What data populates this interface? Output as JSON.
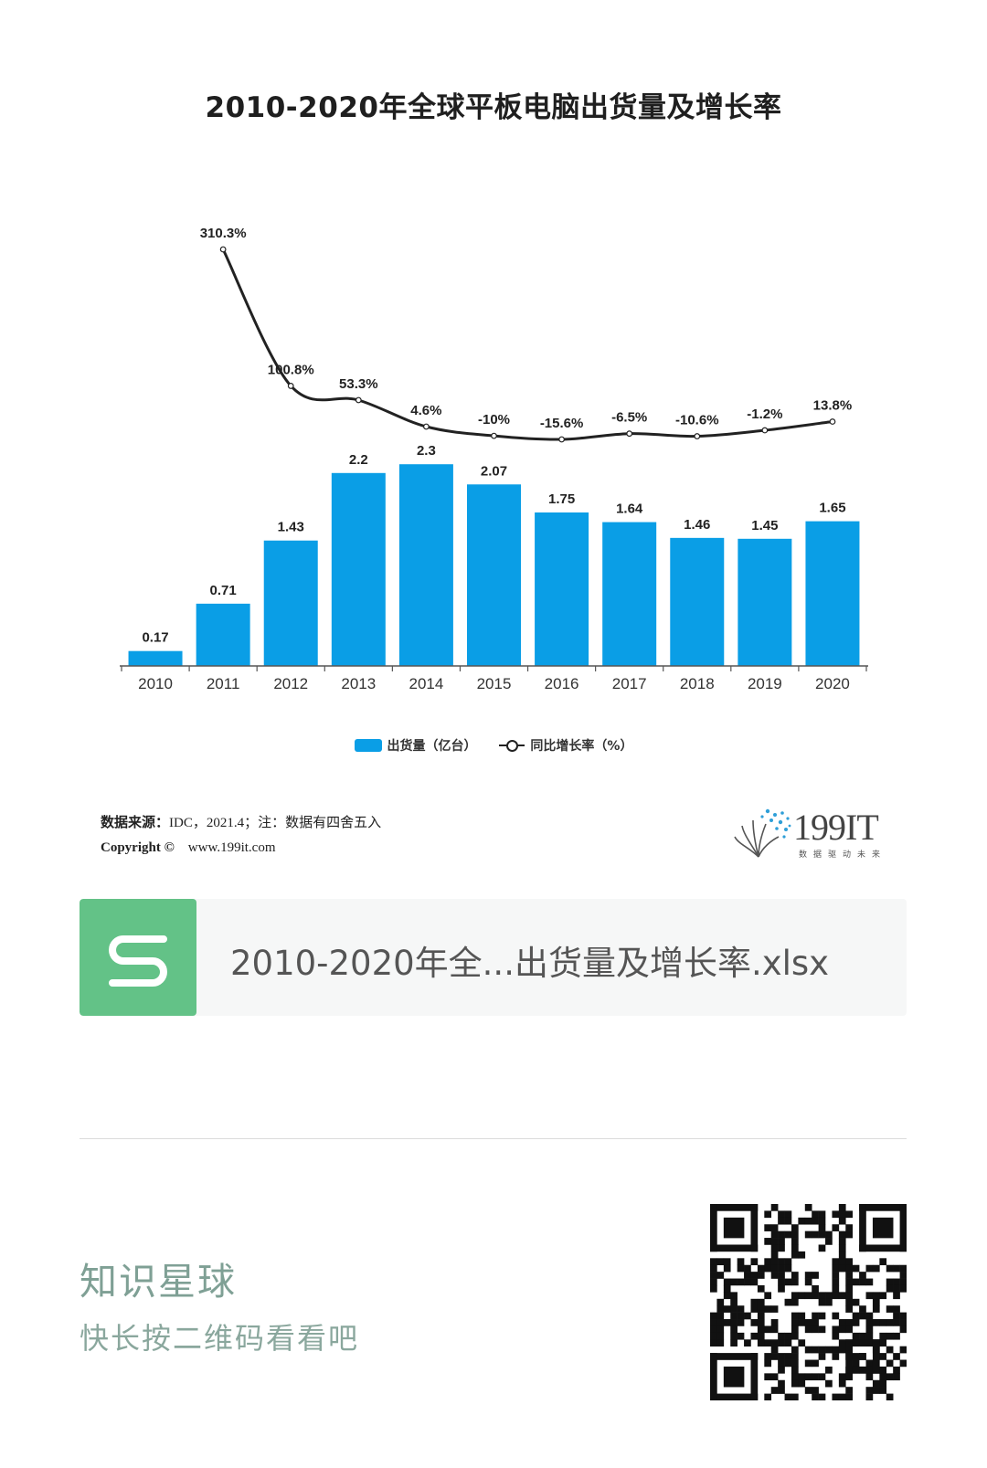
{
  "chart_data": {
    "type": "bar",
    "title": "2010-2020年全球平板电脑出货量及增长率",
    "categories": [
      "2010",
      "2011",
      "2012",
      "2013",
      "2014",
      "2015",
      "2016",
      "2017",
      "2018",
      "2019",
      "2020"
    ],
    "series": [
      {
        "name": "出货量（亿台）",
        "type": "bar",
        "color": "#0a9ee6",
        "values": [
          0.17,
          0.71,
          1.43,
          2.2,
          2.3,
          2.07,
          1.75,
          1.64,
          1.46,
          1.45,
          1.65
        ],
        "labels": [
          "0.17",
          "0.71",
          "1.43",
          "2.2",
          "2.3",
          "2.07",
          "1.75",
          "1.64",
          "1.46",
          "1.45",
          "1.65"
        ]
      },
      {
        "name": "同比增长率（%）",
        "type": "line",
        "color": "#222222",
        "values": [
          null,
          310.3,
          100.8,
          53.3,
          4.6,
          -10,
          -15.6,
          -6.5,
          -10.6,
          -1.2,
          13.8
        ],
        "labels": [
          "",
          "310.3%",
          "100.8%",
          "53.3%",
          "4.6%",
          "-10%",
          "-15.6%",
          "-6.5%",
          "-10.6%",
          "-1.2%",
          "13.8%"
        ]
      }
    ],
    "legend_position": "bottom-center",
    "grid": false
  },
  "legend": {
    "bar": "出货量（亿台）",
    "line": "同比增长率（%）"
  },
  "source": {
    "line1_label": "数据来源：",
    "line1_text": "IDC，2021.4；注：数据有四舍五入",
    "line2_label": "Copyright ©",
    "line2_text": "www.199it.com"
  },
  "logo": {
    "text": "199IT",
    "tagline": "数据驱动未来"
  },
  "file_card": {
    "icon": "spreadsheet-s-icon",
    "filename": "2010-2020年全...出货量及增长率.xlsx",
    "accent": "#63c287"
  },
  "brand": {
    "title": "知识星球",
    "subtitle": "快长按二维码看看吧"
  }
}
